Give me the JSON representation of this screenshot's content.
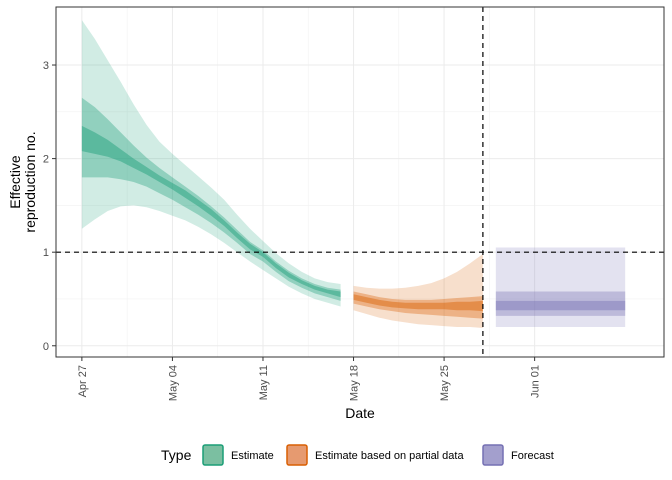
{
  "chart_data": {
    "type": "area",
    "title": "",
    "xlabel": "Date",
    "ylabel": [
      "Effective",
      "reproduction no."
    ],
    "x_tick_labels": [
      {
        "date": "2020-04-27",
        "label": "Apr 27"
      },
      {
        "date": "2020-05-04",
        "label": "May 04"
      },
      {
        "date": "2020-05-11",
        "label": "May 11"
      },
      {
        "date": "2020-05-18",
        "label": "May 18"
      },
      {
        "date": "2020-05-25",
        "label": "May 25"
      },
      {
        "date": "2020-06-01",
        "label": "Jun 01"
      }
    ],
    "y_ticks": [
      0,
      1,
      2,
      3
    ],
    "xlim": [
      "2020-04-25",
      "2020-06-11"
    ],
    "ylim": [
      -0.12,
      3.62
    ],
    "grid": true,
    "reference_lines": {
      "horizontal_y": 1,
      "vertical_date": "2020-05-28"
    },
    "legend": {
      "title": "Type",
      "placement": "bottom",
      "items": [
        {
          "label": "Estimate",
          "fill": "#7bbfa1",
          "stroke": "#1b9e77"
        },
        {
          "label": "Estimate based on partial data",
          "fill": "#e69a70",
          "stroke": "#d95f02"
        },
        {
          "label": "Forecast",
          "fill": "#a39fcd",
          "stroke": "#7570b3"
        }
      ]
    },
    "series": [
      {
        "name": "Estimate",
        "color": "#1b9e77",
        "dates": [
          "2020-04-27",
          "2020-04-28",
          "2020-04-29",
          "2020-04-30",
          "2020-05-01",
          "2020-05-02",
          "2020-05-03",
          "2020-05-04",
          "2020-05-05",
          "2020-05-06",
          "2020-05-07",
          "2020-05-08",
          "2020-05-09",
          "2020-05-10",
          "2020-05-11",
          "2020-05-12",
          "2020-05-13",
          "2020-05-14",
          "2020-05-15",
          "2020-05-16",
          "2020-05-17"
        ],
        "upper90": [
          3.48,
          3.28,
          3.05,
          2.82,
          2.58,
          2.36,
          2.18,
          2.05,
          1.93,
          1.81,
          1.69,
          1.56,
          1.4,
          1.25,
          1.12,
          0.99,
          0.88,
          0.79,
          0.72,
          0.68,
          0.66
        ],
        "upper50": [
          2.65,
          2.55,
          2.42,
          2.28,
          2.14,
          2.01,
          1.9,
          1.8,
          1.7,
          1.6,
          1.49,
          1.37,
          1.24,
          1.11,
          1.02,
          0.9,
          0.8,
          0.72,
          0.66,
          0.62,
          0.6
        ],
        "upper20": [
          2.35,
          2.28,
          2.2,
          2.1,
          2.0,
          1.91,
          1.82,
          1.74,
          1.66,
          1.56,
          1.46,
          1.34,
          1.21,
          1.09,
          1.0,
          0.88,
          0.78,
          0.7,
          0.64,
          0.6,
          0.58
        ],
        "lower20": [
          2.08,
          2.05,
          2.02,
          1.97,
          1.9,
          1.83,
          1.75,
          1.67,
          1.58,
          1.49,
          1.39,
          1.28,
          1.15,
          1.03,
          0.95,
          0.83,
          0.73,
          0.66,
          0.6,
          0.56,
          0.52
        ],
        "lower50": [
          1.8,
          1.8,
          1.8,
          1.78,
          1.75,
          1.7,
          1.63,
          1.56,
          1.48,
          1.4,
          1.31,
          1.21,
          1.1,
          0.98,
          0.9,
          0.79,
          0.69,
          0.62,
          0.56,
          0.52,
          0.48
        ],
        "lower90": [
          1.25,
          1.35,
          1.44,
          1.49,
          1.5,
          1.48,
          1.44,
          1.39,
          1.34,
          1.27,
          1.19,
          1.1,
          1.0,
          0.9,
          0.81,
          0.72,
          0.63,
          0.56,
          0.5,
          0.46,
          0.42
        ]
      },
      {
        "name": "Estimate based on partial data",
        "color": "#d95f02",
        "dates": [
          "2020-05-18",
          "2020-05-19",
          "2020-05-20",
          "2020-05-21",
          "2020-05-22",
          "2020-05-23",
          "2020-05-24",
          "2020-05-25",
          "2020-05-26",
          "2020-05-27",
          "2020-05-28"
        ],
        "upper90": [
          0.64,
          0.62,
          0.61,
          0.61,
          0.62,
          0.64,
          0.67,
          0.72,
          0.79,
          0.88,
          0.98
        ],
        "upper50": [
          0.58,
          0.55,
          0.52,
          0.5,
          0.49,
          0.49,
          0.49,
          0.5,
          0.51,
          0.52,
          0.53
        ],
        "upper20": [
          0.55,
          0.52,
          0.49,
          0.47,
          0.46,
          0.46,
          0.46,
          0.46,
          0.47,
          0.47,
          0.48
        ],
        "lower20": [
          0.49,
          0.46,
          0.43,
          0.41,
          0.4,
          0.39,
          0.39,
          0.39,
          0.38,
          0.38,
          0.37
        ],
        "lower50": [
          0.45,
          0.42,
          0.39,
          0.37,
          0.35,
          0.34,
          0.33,
          0.32,
          0.31,
          0.3,
          0.29
        ],
        "lower90": [
          0.38,
          0.34,
          0.3,
          0.27,
          0.25,
          0.23,
          0.22,
          0.21,
          0.2,
          0.2,
          0.19
        ]
      },
      {
        "name": "Forecast",
        "color": "#7570b3",
        "dates": [
          "2020-05-29",
          "2020-06-08"
        ],
        "upper90": [
          1.05,
          1.05
        ],
        "upper50": [
          0.58,
          0.58
        ],
        "upper20": [
          0.48,
          0.48
        ],
        "lower20": [
          0.38,
          0.38
        ],
        "lower50": [
          0.32,
          0.32
        ],
        "lower90": [
          0.2,
          0.2
        ]
      }
    ]
  }
}
